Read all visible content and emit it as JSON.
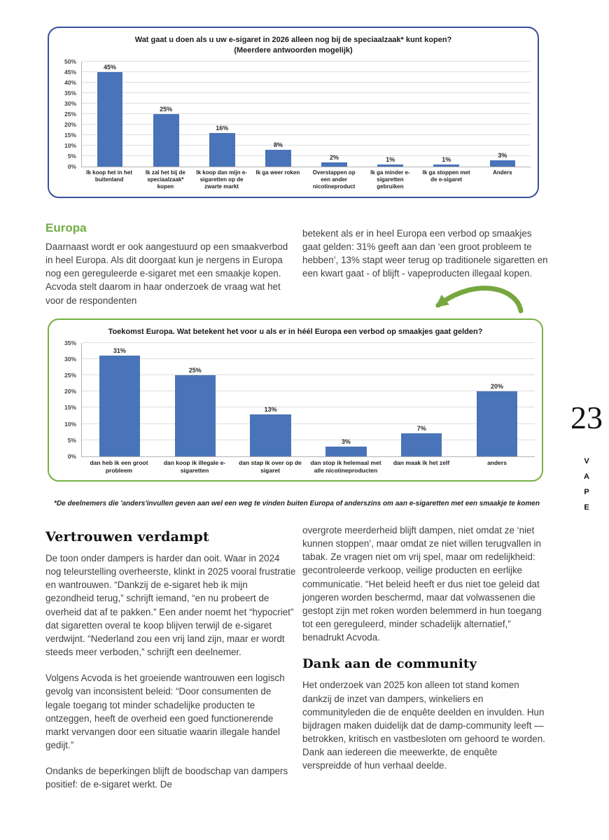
{
  "page": {
    "number": "23",
    "vertical_label": [
      "V",
      "A",
      "P",
      "E"
    ]
  },
  "colors": {
    "bar": "#4a74b9",
    "chart1_border": "#3c4e9b",
    "chart2_border": "#76b043",
    "green_heading": "#6fae44",
    "green_arrow": "#76a73e"
  },
  "chart_data": [
    {
      "type": "bar",
      "title": "Wat gaat u doen als u uw e-sigaret in 2026 alleen nog bij de speciaalzaak* kunt kopen?",
      "subtitle": "(Meerdere antwoorden mogelijk)",
      "categories": [
        "Ik koop het in het buitenland",
        "Ik zal het bij de speciaalzaak* kopen",
        "Ik koop dan mijn e-sigaretten op de zwarte markt",
        "Ik ga weer roken",
        "Overstappen op een ander nicotineproduct",
        "Ik ga minder e-sigaretten gebruiken",
        "Ik ga stoppen met de e-sigaret",
        "Anders"
      ],
      "values": [
        45,
        25,
        16,
        8,
        2,
        1,
        1,
        3
      ],
      "value_labels": [
        "45%",
        "25%",
        "16%",
        "8%",
        "2%",
        "1%",
        "1%",
        "3%"
      ],
      "ylim": [
        0,
        50
      ],
      "ytick_step": 5,
      "grid": true,
      "legend": false,
      "bar_color": "#4a74b9"
    },
    {
      "type": "bar",
      "title": "Toekomst Europa. Wat betekent het voor u als er in héél Europa een verbod op smaakjes gaat gelden?",
      "subtitle": "",
      "categories": [
        "dan heb ik een groot probleem",
        "dan koop ik illegale e-sigaretten",
        "dan stap ik over op de sigaret",
        "dan stop ik helemaal met alle nicotineproducten",
        "dan maak ik het zelf",
        "anders"
      ],
      "values": [
        31,
        25,
        13,
        3,
        7,
        20
      ],
      "value_labels": [
        "31%",
        "25%",
        "13%",
        "3%",
        "7%",
        "20%"
      ],
      "ylim": [
        0,
        35
      ],
      "ytick_step": 5,
      "grid": true,
      "legend": false,
      "bar_color": "#4a74b9"
    }
  ],
  "footnote": "*De deelnemers die 'anders'invullen geven aan wel een weg te vinden buiten Europa of anderszins om aan e-sigaretten met een smaakje te komen",
  "sections": {
    "europa": {
      "heading": "Europa",
      "col_left": "Daarnaast wordt er ook aangestuurd op een smaakverbod in heel Europa. Als dit doorgaat kun je nergens in Europa nog een gereguleerde e-sigaret met een smaakje kopen. Acvoda stelt daarom in haar onderzoek de vraag wat het voor de respondenten",
      "col_right": "betekent als er in heel Europa een verbod op smaakjes gaat gelden: 31% geeft aan dan ‘een groot probleem te hebben’, 13% stapt weer terug op traditionele sigaretten en een kwart gaat - of blijft - vapeproducten illegaal kopen."
    },
    "vertrouwen": {
      "heading": "Vertrouwen verdampt",
      "p1": "De toon onder dampers is harder dan ooit. Waar in 2024 nog teleurstelling overheerste, klinkt in 2025 vooral frustratie en wantrouwen. “Dankzij de e-sigaret heb ik mijn gezondheid terug,” schrijft iemand, “en nu probeert de overheid dat af te pakken.” Een ander noemt het “hypocriet” dat sigaretten overal te koop blijven terwijl de e-sigaret verdwijnt. “Nederland zou een vrij land zijn, maar er wordt steeds meer verboden,” schrijft een deelnemer.",
      "p2": "Volgens Acvoda is het groeiende wantrouwen een logisch gevolg van inconsistent beleid: “Door consumenten de legale toegang tot minder schadelijke producten te ontzeggen, heeft de overheid een goed functionerende markt vervangen door een situatie waarin illegale handel gedijt.”",
      "p3": "Ondanks de beperkingen blijft de boodschap van dampers positief: de e-sigaret werkt. De"
    },
    "right_column": {
      "p1": "overgrote meerderheid blijft dampen, niet omdat ze ‘niet kunnen stoppen’, maar omdat ze niet willen terugvallen in tabak. Ze vragen niet om vrij spel, maar om redelijkheid: gecontroleerde verkoop, veilige producten en eerlijke communicatie. “Het beleid heeft er dus niet toe geleid dat jongeren worden beschermd, maar dat volwassenen die gestopt zijn met roken worden belemmerd in hun toegang tot een gereguleerd, minder schadelijk alternatief,” benadrukt Acvoda.",
      "dank_heading": "Dank aan de community",
      "p2": "Het onderzoek van 2025 kon alleen tot stand komen dankzij de inzet van dampers, winkeliers en communityleden die de enquête deelden en invulden. Hun bijdragen maken duidelijk dat de damp-community leeft — betrokken, kritisch en vastbesloten om gehoord te worden. Dank aan iedereen die meewerkte, de enquête verspreidde of hun verhaal deelde."
    }
  }
}
